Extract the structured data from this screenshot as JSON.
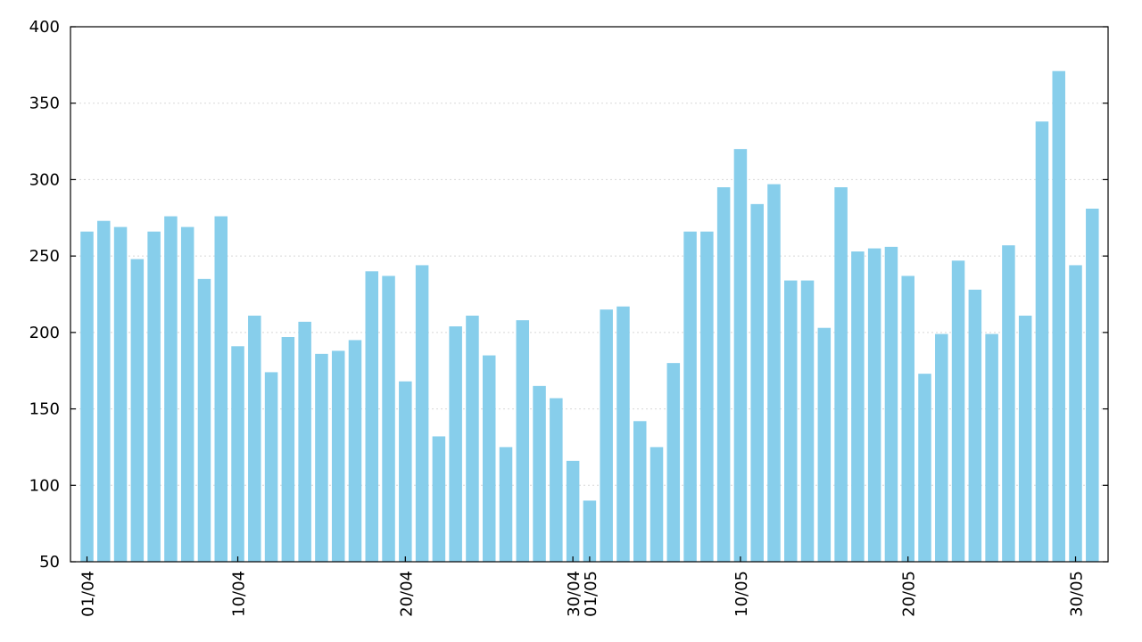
{
  "chart_data": {
    "type": "bar",
    "title": "",
    "xlabel": "",
    "ylabel": "",
    "ylim": [
      50,
      400
    ],
    "yticks": [
      50,
      100,
      150,
      200,
      250,
      300,
      350,
      400
    ],
    "grid": "horizontal dotted",
    "bar_color": "#87ceeb",
    "categories": [
      "01/04",
      "02/04",
      "03/04",
      "04/04",
      "05/04",
      "06/04",
      "07/04",
      "08/04",
      "09/04",
      "10/04",
      "11/04",
      "12/04",
      "13/04",
      "14/04",
      "15/04",
      "16/04",
      "17/04",
      "18/04",
      "19/04",
      "20/04",
      "21/04",
      "22/04",
      "23/04",
      "24/04",
      "25/04",
      "26/04",
      "27/04",
      "28/04",
      "29/04",
      "30/04",
      "01/05",
      "02/05",
      "03/05",
      "04/05",
      "05/05",
      "06/05",
      "07/05",
      "08/05",
      "09/05",
      "10/05",
      "11/05",
      "12/05",
      "13/05",
      "14/05",
      "15/05",
      "16/05",
      "17/05",
      "18/05",
      "19/05",
      "20/05",
      "21/05",
      "22/05",
      "23/05",
      "24/05",
      "25/05",
      "26/05",
      "27/05",
      "28/05",
      "29/05",
      "30/05",
      "31/05"
    ],
    "values": [
      266,
      273,
      269,
      248,
      266,
      276,
      269,
      235,
      276,
      191,
      211,
      174,
      197,
      207,
      186,
      188,
      195,
      240,
      237,
      168,
      244,
      132,
      204,
      211,
      185,
      125,
      208,
      165,
      157,
      116,
      90,
      215,
      217,
      142,
      125,
      180,
      266,
      266,
      295,
      320,
      284,
      297,
      234,
      234,
      203,
      295,
      253,
      255,
      256,
      237,
      173,
      199,
      247,
      228,
      199,
      257,
      211,
      338,
      371,
      244,
      281
    ],
    "xtick_labels": [
      "01/04",
      "10/04",
      "20/04",
      "30/04",
      "01/05",
      "10/05",
      "20/05",
      "30/05"
    ]
  }
}
